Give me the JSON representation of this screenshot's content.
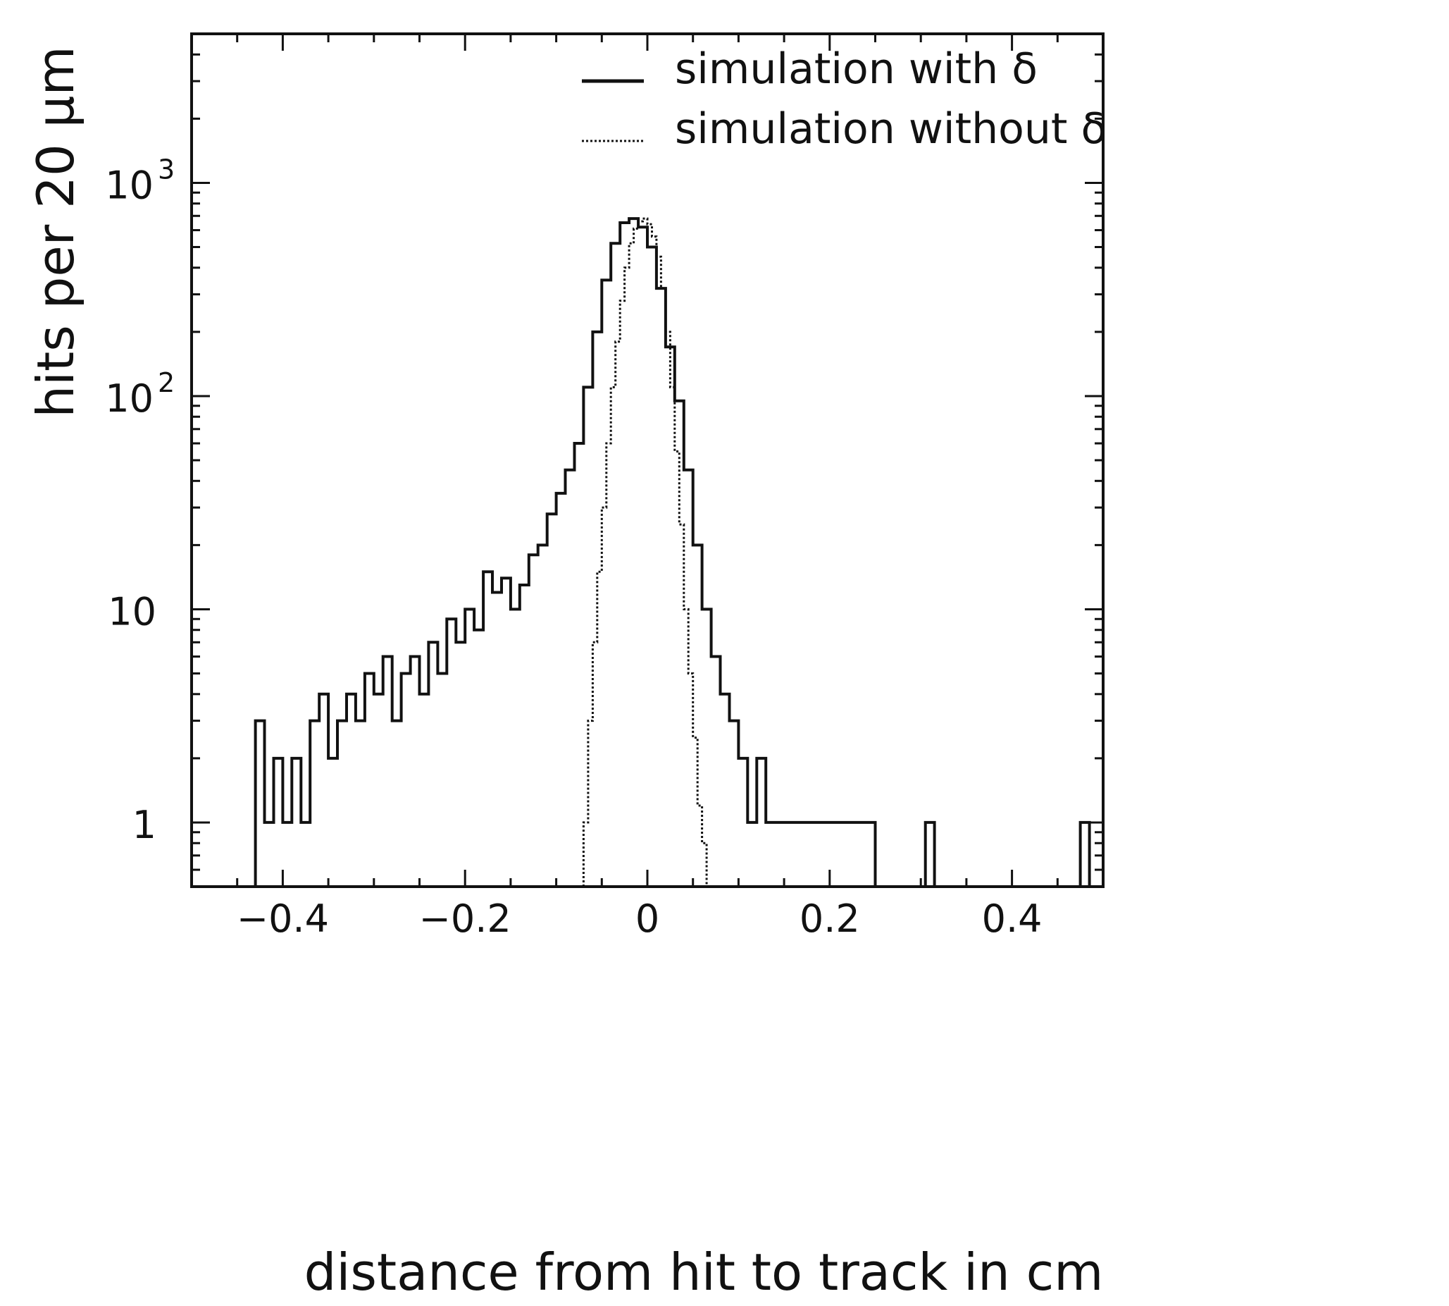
{
  "chart_data": {
    "type": "line",
    "xlabel": "distance from hit to track in cm",
    "ylabel": "hits per 20 μm",
    "xlim": [
      -0.5,
      0.5
    ],
    "ylim": [
      0.5,
      5000
    ],
    "y_scale": "log",
    "grid": false,
    "legend_position": "top-right",
    "x_ticks": [
      {
        "value": -0.4,
        "label": "−0.4"
      },
      {
        "value": -0.2,
        "label": "−0.2"
      },
      {
        "value": 0,
        "label": "0"
      },
      {
        "value": 0.2,
        "label": "0.2"
      },
      {
        "value": 0.4,
        "label": "0.4"
      }
    ],
    "y_ticks": [
      {
        "value": 1,
        "base": "1",
        "exp": ""
      },
      {
        "value": 10,
        "base": "10",
        "exp": ""
      },
      {
        "value": 100,
        "base": "10",
        "exp": "2"
      },
      {
        "value": 1000,
        "base": "10",
        "exp": "3"
      }
    ],
    "series": [
      {
        "name": "simulation with δ",
        "style": "solid",
        "color": "#111111",
        "x": [
          -0.425,
          -0.415,
          -0.405,
          -0.395,
          -0.385,
          -0.375,
          -0.365,
          -0.355,
          -0.345,
          -0.335,
          -0.325,
          -0.315,
          -0.305,
          -0.295,
          -0.285,
          -0.275,
          -0.265,
          -0.255,
          -0.245,
          -0.235,
          -0.225,
          -0.215,
          -0.205,
          -0.195,
          -0.185,
          -0.175,
          -0.165,
          -0.155,
          -0.145,
          -0.135,
          -0.125,
          -0.115,
          -0.105,
          -0.095,
          -0.085,
          -0.075,
          -0.065,
          -0.055,
          -0.045,
          -0.035,
          -0.025,
          -0.015,
          -0.005,
          0.005,
          0.015,
          0.025,
          0.035,
          0.045,
          0.055,
          0.065,
          0.075,
          0.085,
          0.095,
          0.105,
          0.115,
          0.125,
          0.135,
          0.145,
          0.155,
          0.165,
          0.175,
          0.185,
          0.195,
          0.205,
          0.215,
          0.225,
          0.235,
          0.245,
          0.31,
          0.48
        ],
        "y": [
          3,
          1,
          2,
          1,
          2,
          1,
          3,
          4,
          2,
          3,
          4,
          3,
          5,
          4,
          6,
          3,
          5,
          6,
          4,
          7,
          5,
          9,
          7,
          10,
          8,
          15,
          12,
          14,
          10,
          13,
          18,
          20,
          28,
          35,
          45,
          60,
          110,
          200,
          350,
          520,
          650,
          680,
          620,
          500,
          320,
          170,
          95,
          45,
          20,
          10,
          6,
          4,
          3,
          2,
          1,
          2,
          1,
          1,
          1,
          1,
          1,
          1,
          1,
          1,
          1,
          1,
          1,
          1,
          1,
          1
        ]
      },
      {
        "name": "simulation without δ",
        "style": "dotted",
        "color": "#111111",
        "x": [
          -0.0675,
          -0.0625,
          -0.0575,
          -0.0525,
          -0.0475,
          -0.0425,
          -0.0375,
          -0.0325,
          -0.0275,
          -0.0225,
          -0.0175,
          -0.0125,
          -0.0075,
          -0.0025,
          0.0025,
          0.0075,
          0.0125,
          0.0175,
          0.0225,
          0.0275,
          0.0325,
          0.0375,
          0.0425,
          0.0475,
          0.0525,
          0.0575,
          0.0625,
          0.0675
        ],
        "y": [
          1,
          3,
          7,
          15,
          30,
          60,
          110,
          180,
          280,
          400,
          520,
          610,
          660,
          680,
          640,
          560,
          450,
          320,
          200,
          110,
          55,
          25,
          10,
          5,
          2.5,
          1.2,
          0.8,
          0.5
        ]
      }
    ]
  }
}
